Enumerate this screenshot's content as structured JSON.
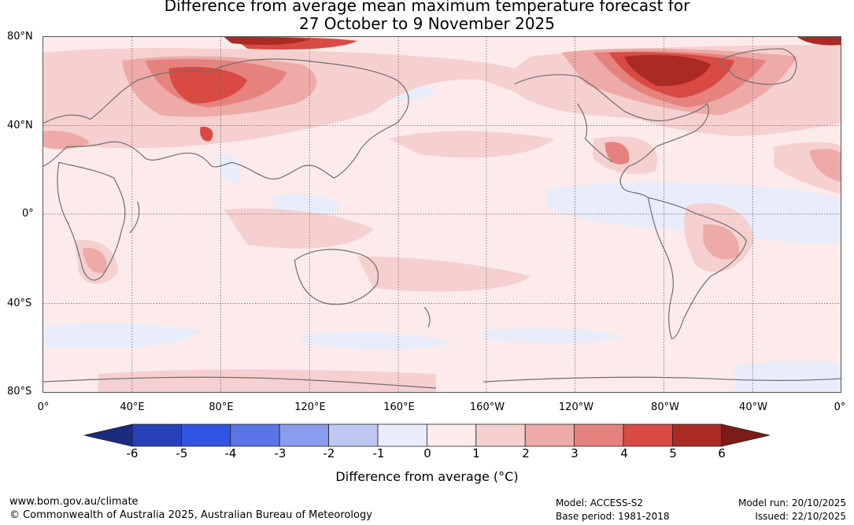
{
  "title": {
    "line1": "Difference from average mean maximum temperature forecast for",
    "line2": "27 October to 9 November 2025"
  },
  "lat_labels": [
    "80°N",
    "40°N",
    "0°",
    "40°S",
    "80°S"
  ],
  "lon_labels": [
    "0°",
    "40°E",
    "80°E",
    "120°E",
    "160°E",
    "160°W",
    "120°W",
    "80°W",
    "40°W",
    "0°"
  ],
  "colorbar": {
    "ticks": [
      "-6",
      "-5",
      "-4",
      "-3",
      "-2",
      "-1",
      "0",
      "1",
      "2",
      "3",
      "4",
      "5",
      "6"
    ],
    "colors": [
      "#1c2a80",
      "#2540b8",
      "#3153e3",
      "#5a75e5",
      "#8a9ced",
      "#bec8f3",
      "#e8ecfb",
      "#fcebea",
      "#f5d0cf",
      "#edaaa7",
      "#e6827d",
      "#d94a42",
      "#ab2a24",
      "#7a1d18"
    ],
    "label": "Difference from average (°C)"
  },
  "footer": {
    "website": "www.bom.gov.au/climate",
    "copyright": "© Commonwealth of Australia 2025, Australian Bureau of Meteorology",
    "model": "Model: ACCESS-S2",
    "base_period": "Base period: 1981-2018",
    "model_run": "Model run: 20/10/2025",
    "issued": "Issued: 22/10/2025"
  }
}
